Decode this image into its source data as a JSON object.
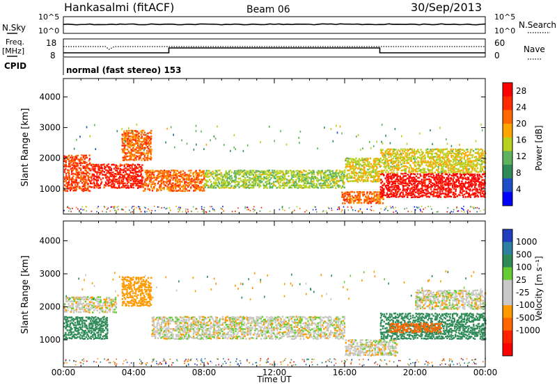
{
  "header": {
    "station": "Hankasalmi (fitACF)",
    "beam": "Beam 06",
    "date": "30/Sep/2013"
  },
  "summary": {
    "nsky_label": "N.Sky",
    "nsearch_label": "N.Search",
    "freq_label_1": "Freq.",
    "freq_label_2": "[MHz]",
    "cpid_label": "CPID",
    "nave_label": "Nave",
    "nsky_ticks": [
      "10^5",
      "10^0"
    ],
    "nsearch_ticks": [
      "10^5",
      "10^0"
    ],
    "freq_ticks": [
      "18",
      "8"
    ],
    "nave_ticks": [
      "60",
      "0"
    ],
    "cpid_text": "normal (fast stereo) 153"
  },
  "colors": {
    "power": [
      "#0000ff",
      "#1f4fc8",
      "#2e8b57",
      "#5fb35f",
      "#b8d020",
      "#ffa500",
      "#ff6a00",
      "#ff2a00",
      "#ff0000"
    ],
    "velocity": [
      "#1f3fbf",
      "#2f7fa0",
      "#2e8b57",
      "#66cc33",
      "#c8c8c8",
      "#c8c8c8",
      "#ff9900",
      "#ff6600",
      "#ff2200",
      "#ff0000"
    ],
    "ground_scatter": "#c8c8c0"
  },
  "chart_data": [
    {
      "type": "heatmap",
      "name": "power",
      "xlabel": "Time UT",
      "ylabel": "Slant Range [km]",
      "x_ticks": [
        "00:00",
        "04:00",
        "08:00",
        "12:00",
        "16:00",
        "20:00",
        "00:00"
      ],
      "xlim": [
        0,
        24
      ],
      "ylim": [
        180,
        4600
      ],
      "y_ticks": [
        1000,
        2000,
        3000,
        4000
      ],
      "colorbar": {
        "label": "Power [dB]",
        "ticks": [
          4,
          8,
          12,
          16,
          20,
          24,
          28
        ],
        "range": [
          0,
          30
        ]
      },
      "bands": [
        {
          "t0": 0.0,
          "t1": 1.5,
          "r0": 900,
          "r1": 2100,
          "level": 24
        },
        {
          "t0": 1.5,
          "t1": 4.5,
          "r0": 1000,
          "r1": 1800,
          "level": 26
        },
        {
          "t0": 3.3,
          "t1": 5.0,
          "r0": 1900,
          "r1": 2900,
          "level": 22
        },
        {
          "t0": 4.5,
          "t1": 8.0,
          "r0": 900,
          "r1": 1600,
          "level": 22
        },
        {
          "t0": 8.0,
          "t1": 16.0,
          "r0": 1000,
          "r1": 1600,
          "level": 14
        },
        {
          "t0": 16.0,
          "t1": 18.0,
          "r0": 1200,
          "r1": 2000,
          "level": 16
        },
        {
          "t0": 15.8,
          "t1": 18.2,
          "r0": 500,
          "r1": 900,
          "level": 22
        },
        {
          "t0": 18.0,
          "t1": 24.0,
          "r0": 700,
          "r1": 1500,
          "level": 28
        },
        {
          "t0": 18.0,
          "t1": 24.0,
          "r0": 1500,
          "r1": 2300,
          "level": 16
        }
      ]
    },
    {
      "type": "heatmap",
      "name": "velocity",
      "xlabel": "Time UT",
      "ylabel": "Slant Range [km]",
      "x_ticks": [
        "00:00",
        "04:00",
        "08:00",
        "12:00",
        "16:00",
        "20:00",
        "00:00"
      ],
      "xlim": [
        0,
        24
      ],
      "ylim": [
        180,
        4600
      ],
      "y_ticks": [
        1000,
        2000,
        3000,
        4000
      ],
      "colorbar": {
        "label": "Velocity [m s⁻¹]",
        "ticks": [
          "1000",
          "500",
          "100",
          "25",
          "-25",
          "-100",
          "-500",
          "-1000"
        ]
      },
      "bands": [
        {
          "t0": 0.0,
          "t1": 2.5,
          "r0": 1000,
          "r1": 1700,
          "level": 100
        },
        {
          "t0": 0.0,
          "t1": 3.0,
          "r0": 1800,
          "r1": 2300,
          "level": 0
        },
        {
          "t0": 3.3,
          "t1": 5.0,
          "r0": 2000,
          "r1": 2900,
          "level": -100
        },
        {
          "t0": 5.0,
          "t1": 16.0,
          "r0": 1000,
          "r1": 1700,
          "level": 0
        },
        {
          "t0": 16.0,
          "t1": 19.0,
          "r0": 500,
          "r1": 1000,
          "level": 0
        },
        {
          "t0": 18.0,
          "t1": 24.0,
          "r0": 1000,
          "r1": 1800,
          "level": 100
        },
        {
          "t0": 18.5,
          "t1": 21.5,
          "r0": 1200,
          "r1": 1500,
          "level": -500
        },
        {
          "t0": 20.0,
          "t1": 24.0,
          "r0": 1900,
          "r1": 2500,
          "level": 0
        }
      ]
    }
  ]
}
